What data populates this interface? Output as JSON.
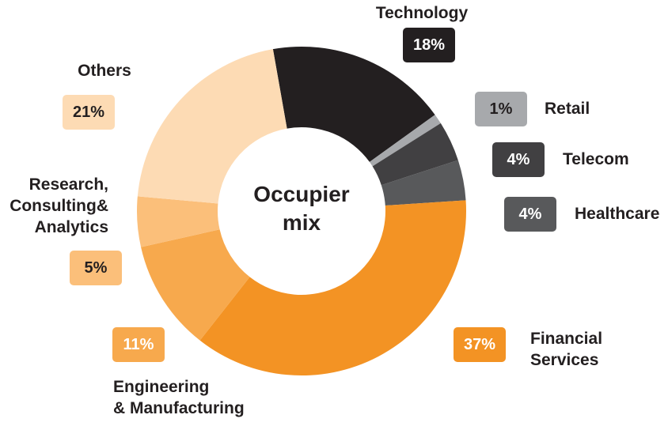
{
  "chart_data": {
    "type": "donut",
    "title": "Occupier\nmix",
    "categories": [
      "Technology",
      "Retail",
      "Telecom",
      "Healthcare",
      "Financial\nServices",
      "Engineering\n& Manufacturing",
      "Research,\nConsulting&\nAnalytics",
      "Others"
    ],
    "values": [
      18,
      1,
      4,
      4,
      37,
      11,
      5,
      21
    ],
    "value_labels": [
      "18%",
      "1%",
      "4%",
      "4%",
      "37%",
      "11%",
      "5%",
      "21%"
    ],
    "colors": [
      "#231f20",
      "#a7a9ac",
      "#414042",
      "#58595b",
      "#f39324",
      "#f7a94d",
      "#fbbf7a",
      "#fddbb4"
    ]
  }
}
